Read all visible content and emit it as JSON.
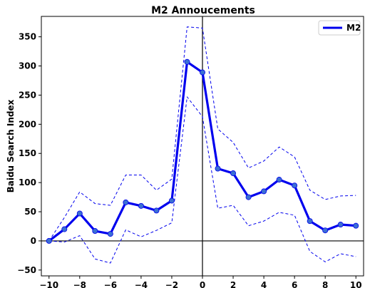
{
  "chart_data": {
    "type": "line",
    "title": "M2 Annoucements",
    "xlabel": "",
    "ylabel": "Baidu Search Index",
    "xlim": [
      -10.5,
      10.5
    ],
    "ylim": [
      -60,
      385
    ],
    "x_ticks": [
      -10,
      -8,
      -6,
      -4,
      -2,
      0,
      2,
      4,
      6,
      8,
      10
    ],
    "y_ticks": [
      -50,
      0,
      50,
      100,
      150,
      200,
      250,
      300,
      350
    ],
    "grid": false,
    "legend": {
      "position": "top-right",
      "entries": [
        "M2"
      ]
    },
    "reference_lines": {
      "horizontal": 0,
      "vertical": 0
    },
    "x": [
      -10,
      -9,
      -8,
      -7,
      -6,
      -5,
      -4,
      -3,
      -2,
      -1,
      0,
      1,
      2,
      3,
      4,
      5,
      6,
      7,
      8,
      9,
      10
    ],
    "series": [
      {
        "name": "M2",
        "style": "solid",
        "markers": true,
        "color": "#0000ee",
        "marker_color": "#3b6fd4",
        "values": [
          0,
          20,
          47,
          17,
          12,
          66,
          60,
          52,
          69,
          307,
          289,
          124,
          116,
          75,
          85,
          105,
          95,
          34,
          18,
          28,
          26
        ]
      },
      {
        "role": "upper-band",
        "style": "dashed",
        "color": "#0000ee",
        "values": [
          0,
          40,
          84,
          64,
          61,
          113,
          113,
          87,
          106,
          367,
          365,
          192,
          169,
          125,
          137,
          161,
          144,
          87,
          71,
          77,
          78
        ]
      },
      {
        "role": "lower-band",
        "style": "dashed",
        "color": "#0000ee",
        "values": [
          0,
          -2,
          9,
          -31,
          -38,
          19,
          7,
          18,
          31,
          247,
          213,
          56,
          61,
          26,
          34,
          49,
          44,
          -18,
          -36,
          -22,
          -27
        ]
      }
    ]
  }
}
